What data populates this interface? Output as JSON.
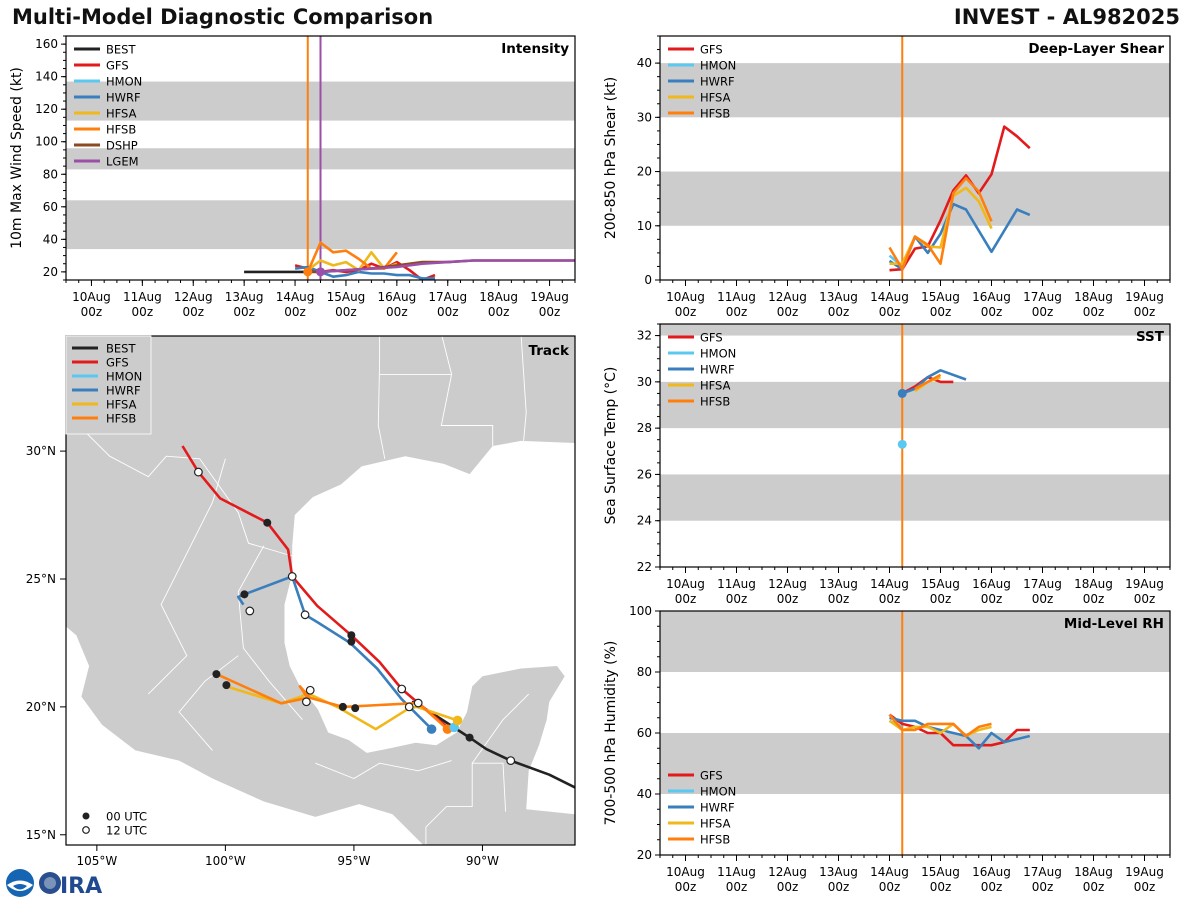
{
  "header": {
    "title_left": "Multi-Model Diagnostic Comparison",
    "title_right": "INVEST - AL982025"
  },
  "colors": {
    "BEST": "#222222",
    "GFS": "#e31a1c",
    "HMON": "#5bc8f2",
    "HWRF": "#3a7fbd",
    "HFSA": "#f0b81b",
    "HFSB": "#ff7f0e",
    "DSHP": "#8b4a1f",
    "LGEM": "#9b4fa8",
    "band": "#cccccc",
    "land": "#cccccc",
    "border": "#ffffff"
  },
  "time_axis": {
    "ticks": [
      {
        "day": 10,
        "label1": "10Aug",
        "label2": "00z"
      },
      {
        "day": 11,
        "label1": "11Aug",
        "label2": "00z"
      },
      {
        "day": 12,
        "label1": "12Aug",
        "label2": "00z"
      },
      {
        "day": 13,
        "label1": "13Aug",
        "label2": "00z"
      },
      {
        "day": 14,
        "label1": "14Aug",
        "label2": "00z"
      },
      {
        "day": 15,
        "label1": "15Aug",
        "label2": "00z"
      },
      {
        "day": 16,
        "label1": "16Aug",
        "label2": "00z"
      },
      {
        "day": 17,
        "label1": "17Aug",
        "label2": "00z"
      },
      {
        "day": 18,
        "label1": "18Aug",
        "label2": "00z"
      },
      {
        "day": 19,
        "label1": "19Aug",
        "label2": "00z"
      }
    ],
    "xlim_days": [
      9.5,
      19.5
    ],
    "init_time_day": 14.25
  },
  "chart_data": [
    {
      "id": "intensity",
      "type": "line",
      "title": "Intensity",
      "ylabel": "10m Max Wind Speed (kt)",
      "ylim": [
        15,
        165
      ],
      "yticks": [
        20,
        40,
        60,
        80,
        100,
        120,
        140,
        160
      ],
      "bands": [
        [
          34,
          64
        ],
        [
          83,
          96
        ],
        [
          113,
          137
        ]
      ],
      "vlines": [
        {
          "day": 14.25,
          "color_key": "HFSB"
        },
        {
          "day": 14.5,
          "color_key": "LGEM"
        }
      ],
      "legend": [
        "BEST",
        "GFS",
        "HMON",
        "HWRF",
        "HFSA",
        "HFSB",
        "DSHP",
        "LGEM"
      ],
      "legend_position": "top-left",
      "series": [
        {
          "name": "BEST",
          "x": [
            13.0,
            13.5,
            14.0,
            14.25
          ],
          "y": [
            20,
            20,
            20,
            20
          ]
        },
        {
          "name": "GFS",
          "x": [
            14.0,
            14.25,
            14.5,
            14.75,
            15.0,
            15.25,
            15.5,
            15.75,
            16.0,
            16.25,
            16.5,
            16.75
          ],
          "y": [
            24,
            22,
            20,
            21,
            20,
            21,
            25,
            22,
            26,
            21,
            15,
            18
          ]
        },
        {
          "name": "HWRF",
          "x": [
            14.0,
            14.25,
            14.5,
            14.75,
            15.0,
            15.25,
            15.5,
            15.75,
            16.0,
            16.25,
            16.5,
            16.75
          ],
          "y": [
            22,
            23,
            20,
            17,
            18,
            20,
            19,
            19,
            18,
            18,
            16,
            16
          ]
        },
        {
          "name": "HFSA",
          "x": [
            14.25,
            14.5,
            14.75,
            15.0,
            15.25,
            15.5,
            15.75,
            16.0
          ],
          "y": [
            21,
            27,
            24,
            26,
            21,
            32,
            22,
            25
          ]
        },
        {
          "name": "HFSB",
          "x": [
            14.25,
            14.5,
            14.75,
            15.0,
            15.25,
            15.5,
            15.75,
            16.0
          ],
          "y": [
            20,
            38,
            32,
            33,
            28,
            22,
            22,
            32
          ]
        },
        {
          "name": "DSHP",
          "x": [
            14.25,
            14.5,
            15.0,
            15.5,
            16.0,
            16.5,
            17.0,
            17.5,
            18.0,
            19.0,
            19.5
          ],
          "y": [
            20,
            20,
            21,
            22,
            24,
            26,
            26,
            27,
            27,
            27,
            27
          ]
        },
        {
          "name": "LGEM",
          "x": [
            14.5,
            15.0,
            15.5,
            16.0,
            16.5,
            17.0,
            17.5,
            18.0,
            19.0,
            19.5
          ],
          "y": [
            20,
            21,
            22,
            23,
            25,
            26,
            27,
            27,
            27,
            27
          ]
        }
      ],
      "markers": [
        {
          "name": "HFSB",
          "day": 14.25,
          "value": 20
        },
        {
          "name": "LGEM",
          "day": 14.5,
          "value": 20
        }
      ]
    },
    {
      "id": "shear",
      "type": "line",
      "title": "Deep-Layer Shear",
      "ylabel": "200-850 hPa Shear (kt)",
      "ylim": [
        0,
        45
      ],
      "yticks": [
        0,
        10,
        20,
        30,
        40
      ],
      "bands": [
        [
          10,
          20
        ],
        [
          30,
          40
        ]
      ],
      "vlines": [
        {
          "day": 14.25,
          "color_key": "HFSB"
        }
      ],
      "legend": [
        "GFS",
        "HMON",
        "HWRF",
        "HFSA",
        "HFSB"
      ],
      "legend_position": "top-left",
      "series": [
        {
          "name": "GFS",
          "x": [
            14.0,
            14.25,
            14.5,
            14.75,
            15.0,
            15.25,
            15.5,
            15.75,
            16.0,
            16.25,
            16.5,
            16.75
          ],
          "y": [
            1.8,
            2.0,
            5.8,
            6.2,
            11.0,
            16.5,
            19.3,
            16.0,
            19.5,
            28.3,
            26.5,
            24.3
          ]
        },
        {
          "name": "HMON",
          "x": [
            14.0,
            14.25
          ],
          "y": [
            4.5,
            2.5
          ]
        },
        {
          "name": "HWRF",
          "x": [
            14.0,
            14.25,
            14.5,
            14.75,
            15.0,
            15.25,
            15.5,
            16.0,
            16.5,
            16.75
          ],
          "y": [
            3.5,
            2.0,
            8.0,
            5.0,
            8.5,
            14.0,
            13.0,
            5.2,
            13.0,
            12.0
          ]
        },
        {
          "name": "HFSA",
          "x": [
            14.0,
            14.25,
            14.5,
            14.75,
            15.0,
            15.25,
            15.5,
            15.75,
            16.0
          ],
          "y": [
            3.0,
            3.0,
            8.0,
            6.2,
            6.0,
            15.5,
            17.0,
            14.5,
            9.5
          ]
        },
        {
          "name": "HFSB",
          "x": [
            14.0,
            14.25,
            14.5,
            14.75,
            15.0,
            15.25,
            15.5,
            15.75,
            16.0
          ],
          "y": [
            6.0,
            2.0,
            8.0,
            6.5,
            3.0,
            16.0,
            18.8,
            16.3,
            10.8
          ]
        }
      ]
    },
    {
      "id": "sst",
      "type": "line",
      "title": "SST",
      "ylabel": "Sea Surface Temp (°C)",
      "ylim": [
        22,
        32.5
      ],
      "yticks": [
        22,
        24,
        26,
        28,
        30,
        32
      ],
      "bands": [
        [
          24,
          26
        ],
        [
          28,
          30
        ],
        [
          32,
          34
        ]
      ],
      "vlines": [
        {
          "day": 14.25,
          "color_key": "HFSB"
        }
      ],
      "legend": [
        "GFS",
        "HMON",
        "HWRF",
        "HFSA",
        "HFSB"
      ],
      "legend_position": "top-left",
      "series": [
        {
          "name": "GFS",
          "x": [
            14.25,
            14.5,
            14.75,
            15.0,
            15.25
          ],
          "y": [
            29.5,
            29.8,
            30.2,
            30.0,
            30.0
          ]
        },
        {
          "name": "HWRF",
          "x": [
            14.25,
            14.5,
            14.75,
            15.0,
            15.5
          ],
          "y": [
            29.5,
            29.7,
            30.2,
            30.5,
            30.1
          ]
        },
        {
          "name": "HFSA",
          "x": [
            14.5,
            14.75,
            15.0
          ],
          "y": [
            29.6,
            30.0,
            30.2
          ]
        },
        {
          "name": "HFSB",
          "x": [
            14.5,
            14.75,
            15.0
          ],
          "y": [
            29.7,
            30.0,
            30.3
          ]
        }
      ],
      "markers": [
        {
          "name": "HWRF",
          "day": 14.25,
          "value": 29.5
        },
        {
          "name": "HMON",
          "day": 14.25,
          "value": 27.3
        }
      ]
    },
    {
      "id": "rh",
      "type": "line",
      "title": "Mid-Level RH",
      "ylabel": "700-500 hPa Humidity (%)",
      "ylim": [
        20,
        100
      ],
      "yticks": [
        20,
        40,
        60,
        80,
        100
      ],
      "bands": [
        [
          40,
          60
        ],
        [
          80,
          100
        ]
      ],
      "vlines": [
        {
          "day": 14.25,
          "color_key": "HFSB"
        }
      ],
      "legend": [
        "GFS",
        "HMON",
        "HWRF",
        "HFSA",
        "HFSB"
      ],
      "legend_position": "bottom-left",
      "series": [
        {
          "name": "GFS",
          "x": [
            14.0,
            14.25,
            14.5,
            14.75,
            15.0,
            15.25,
            15.5,
            15.75,
            16.0,
            16.25,
            16.5,
            16.75
          ],
          "y": [
            66,
            63,
            62,
            60,
            60,
            56,
            56,
            56,
            56,
            57,
            61,
            61
          ]
        },
        {
          "name": "HMON",
          "x": [
            14.0,
            14.25
          ],
          "y": [
            64,
            62
          ]
        },
        {
          "name": "HWRF",
          "x": [
            14.0,
            14.25,
            14.5,
            14.75,
            15.0,
            15.25,
            15.5,
            15.75,
            16.0,
            16.25,
            16.5,
            16.75
          ],
          "y": [
            65,
            64,
            64,
            62,
            61,
            60,
            59,
            55,
            60,
            57,
            58,
            59
          ]
        },
        {
          "name": "HFSA",
          "x": [
            14.0,
            14.25,
            14.5,
            14.75,
            15.0,
            15.25,
            15.5,
            15.75,
            16.0
          ],
          "y": [
            64,
            61,
            62,
            62,
            60,
            63,
            59,
            61,
            62
          ]
        },
        {
          "name": "HFSB",
          "x": [
            14.0,
            14.25,
            14.5,
            14.75,
            15.0,
            15.25,
            15.5,
            15.75,
            16.0
          ],
          "y": [
            66,
            61,
            61,
            63,
            63,
            63,
            59,
            62,
            63
          ]
        }
      ]
    },
    {
      "id": "track",
      "type": "scatter",
      "title": "Track",
      "xlim": [
        -106.2,
        -86.4
      ],
      "ylim": [
        14.6,
        34.5
      ],
      "xticks": [
        {
          "v": -105,
          "label": "105°W"
        },
        {
          "v": -100,
          "label": "100°W"
        },
        {
          "v": -95,
          "label": "95°W"
        },
        {
          "v": -90,
          "label": "90°W"
        }
      ],
      "yticks": [
        {
          "v": 15,
          "label": "15°N"
        },
        {
          "v": 20,
          "label": "20°N"
        },
        {
          "v": 25,
          "label": "25°N"
        },
        {
          "v": 30,
          "label": "30°N"
        }
      ],
      "legend": [
        "BEST",
        "GFS",
        "HMON",
        "HWRF",
        "HFSA",
        "HFSB"
      ],
      "legend_position": "top-left",
      "marker_legend": [
        {
          "kind": "filled",
          "label": "00 UTC"
        },
        {
          "kind": "open",
          "label": "12 UTC"
        }
      ],
      "series": [
        {
          "name": "BEST",
          "lon": [
            -86.4,
            -87.4,
            -88.9,
            -89.85,
            -90.5,
            -91.5,
            -92.5,
            -92.75
          ],
          "lat": [
            16.85,
            17.35,
            17.9,
            18.35,
            18.8,
            19.45,
            20.1,
            20.2
          ]
        },
        {
          "name": "GFS",
          "lon": [
            -101.67,
            -101.05,
            -100.2,
            -98.37,
            -97.56,
            -97.4,
            -96.43,
            -95.1,
            -94.0,
            -93.14,
            -92.5,
            -91.36
          ],
          "lat": [
            30.2,
            29.18,
            28.15,
            27.2,
            26.15,
            25.1,
            23.95,
            22.8,
            21.75,
            20.7,
            20.15,
            19.2
          ]
        },
        {
          "name": "HWRF",
          "lon": [
            -99.3,
            -99.5,
            -99.26,
            -97.4,
            -96.9,
            -96.4,
            -95.15,
            -94.1,
            -93.14,
            -91.98
          ],
          "lat": [
            24.0,
            24.3,
            24.4,
            25.1,
            23.6,
            23.3,
            22.5,
            21.5,
            20.3,
            19.13
          ]
        },
        {
          "name": "HFSA",
          "lon": [
            -99.96,
            -97.83,
            -97.05,
            -96.7,
            -96.85,
            -95.65,
            -94.15,
            -92.85,
            -92.55,
            -90.97
          ],
          "lat": [
            20.8,
            20.14,
            20.4,
            20.6,
            20.55,
            20.0,
            19.13,
            19.95,
            20.0,
            19.47
          ]
        },
        {
          "name": "HFSB",
          "lon": [
            -100.35,
            -97.83,
            -96.8,
            -97.1,
            -96.7,
            -95.43,
            -92.5,
            -91.36
          ],
          "lat": [
            21.28,
            20.14,
            20.35,
            20.8,
            20.35,
            20.0,
            20.15,
            19.13
          ]
        }
      ],
      "points": [
        {
          "name": "GFS",
          "kind": "open",
          "lon": -101.05,
          "lat": 29.18
        },
        {
          "name": "GFS",
          "kind": "filled",
          "lon": -98.37,
          "lat": 27.2
        },
        {
          "name": "GFS",
          "kind": "open",
          "lon": -97.4,
          "lat": 25.1
        },
        {
          "name": "GFS",
          "kind": "filled",
          "lon": -95.1,
          "lat": 22.8
        },
        {
          "name": "GFS",
          "kind": "open",
          "lon": -93.14,
          "lat": 20.7
        },
        {
          "name": "HWRF",
          "kind": "filled",
          "lon": -99.26,
          "lat": 24.4
        },
        {
          "name": "HWRF",
          "kind": "open",
          "lon": -99.05,
          "lat": 23.75
        },
        {
          "name": "HWRF",
          "kind": "open",
          "lon": -96.9,
          "lat": 23.6
        },
        {
          "name": "HWRF",
          "kind": "filled",
          "lon": -95.1,
          "lat": 22.55
        },
        {
          "name": "HFSB",
          "kind": "filled",
          "lon": -100.35,
          "lat": 21.28
        },
        {
          "name": "HFSA",
          "kind": "filled",
          "lon": -99.96,
          "lat": 20.85
        },
        {
          "name": "HFSB",
          "kind": "open",
          "lon": -96.7,
          "lat": 20.65
        },
        {
          "name": "HFSA",
          "kind": "open",
          "lon": -96.85,
          "lat": 20.2
        },
        {
          "name": "HFSB",
          "kind": "filled",
          "lon": -95.43,
          "lat": 20.0
        },
        {
          "name": "HFSA",
          "kind": "filled",
          "lon": -94.95,
          "lat": 19.95
        },
        {
          "name": "HFSA",
          "kind": "open",
          "lon": -92.85,
          "lat": 20.0
        },
        {
          "name": "BEST",
          "kind": "open",
          "lon": -92.5,
          "lat": 20.15
        },
        {
          "name": "BEST",
          "kind": "filled",
          "lon": -90.5,
          "lat": 18.8
        },
        {
          "name": "BEST",
          "kind": "open",
          "lon": -88.9,
          "lat": 17.9
        },
        {
          "name": "HWRF",
          "kind": "end",
          "lon": -91.98,
          "lat": 19.13
        },
        {
          "name": "HFSB",
          "kind": "end",
          "lon": -91.36,
          "lat": 19.13
        },
        {
          "name": "HMON",
          "kind": "end",
          "lon": -91.1,
          "lat": 19.2
        },
        {
          "name": "HFSA",
          "kind": "end",
          "lon": -90.97,
          "lat": 19.47
        }
      ]
    }
  ]
}
